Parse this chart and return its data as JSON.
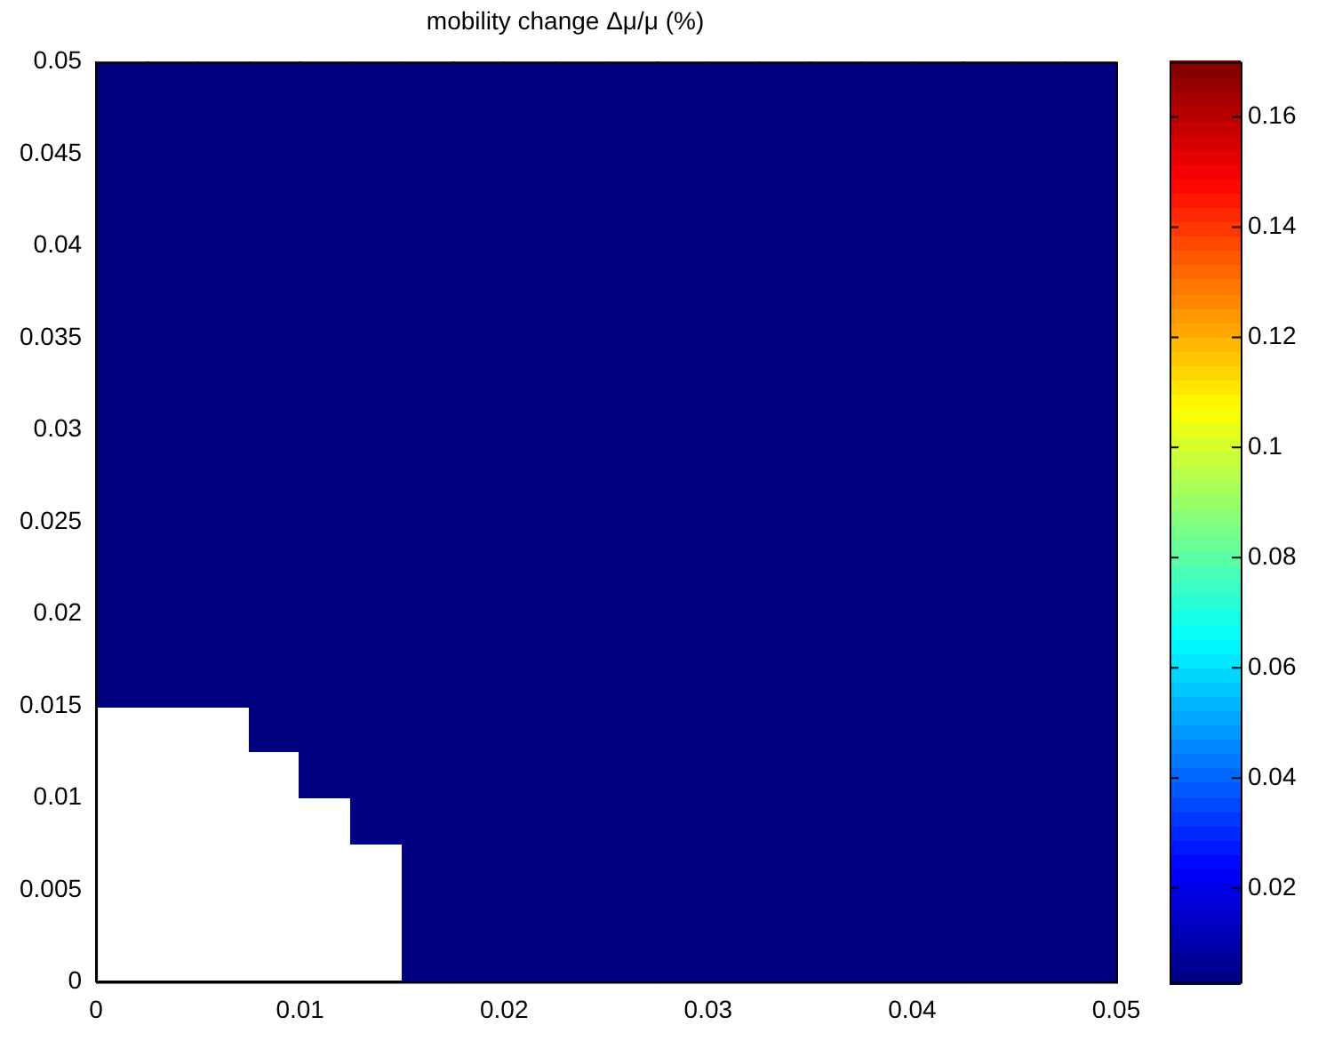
{
  "chart_data": {
    "type": "heatmap",
    "title": "mobility change Δμ/μ (%)",
    "xlim": [
      0,
      0.05
    ],
    "xticks": [
      0,
      0.01,
      0.02,
      0.03,
      0.04,
      0.05
    ],
    "ylim": [
      0,
      0.05
    ],
    "yticks": [
      0,
      0.005,
      0.01,
      0.015,
      0.02,
      0.025,
      0.03,
      0.035,
      0.04,
      0.045,
      0.05
    ],
    "clim": [
      0.003,
      0.17
    ],
    "cticks": [
      0.02,
      0.04,
      0.06,
      0.08,
      0.1,
      0.12,
      0.14,
      0.16
    ],
    "cells": [
      [
        0.003,
        0.003,
        0.003,
        0.003,
        0.003,
        0.003,
        0.003,
        0.003,
        0.003,
        0.003,
        0.003,
        0.003,
        0.003,
        0.003,
        0.003,
        0.003,
        0.003,
        0.003,
        0.003,
        0.003
      ],
      [
        0.003,
        0.003,
        0.003,
        0.003,
        0.003,
        0.003,
        0.003,
        0.003,
        0.003,
        0.003,
        0.003,
        0.003,
        0.003,
        0.003,
        0.003,
        0.003,
        0.003,
        0.003,
        0.003,
        0.003
      ],
      [
        0.003,
        0.003,
        0.003,
        0.003,
        0.003,
        0.003,
        0.003,
        0.003,
        0.003,
        0.003,
        0.003,
        0.003,
        0.003,
        0.003,
        0.003,
        0.003,
        0.003,
        0.003,
        0.003,
        0.003
      ],
      [
        0.003,
        0.003,
        0.003,
        0.003,
        0.003,
        0.003,
        0.003,
        0.003,
        0.003,
        0.003,
        0.003,
        0.003,
        0.003,
        0.003,
        0.003,
        0.003,
        0.003,
        0.003,
        0.003,
        0.003
      ],
      [
        0.003,
        0.003,
        0.003,
        0.003,
        0.003,
        0.003,
        0.003,
        0.003,
        0.003,
        0.003,
        0.003,
        0.003,
        0.003,
        0.003,
        0.003,
        0.003,
        0.003,
        0.003,
        0.003,
        0.003
      ],
      [
        0.003,
        0.003,
        0.003,
        0.003,
        0.003,
        0.003,
        0.003,
        0.003,
        0.003,
        0.003,
        0.003,
        0.003,
        0.003,
        0.003,
        0.003,
        0.003,
        0.003,
        0.003,
        0.003,
        0.003
      ],
      [
        0.003,
        0.003,
        0.003,
        0.003,
        0.003,
        0.003,
        0.003,
        0.003,
        0.003,
        0.003,
        0.003,
        0.003,
        0.003,
        0.003,
        0.003,
        0.003,
        0.003,
        0.003,
        0.003,
        0.003
      ],
      [
        0.003,
        0.003,
        0.003,
        0.003,
        0.003,
        0.003,
        0.003,
        0.003,
        0.003,
        0.003,
        0.003,
        0.003,
        0.003,
        0.003,
        0.003,
        0.003,
        0.003,
        0.003,
        0.003,
        0.003
      ],
      [
        0.003,
        0.003,
        0.003,
        0.003,
        0.003,
        0.003,
        0.003,
        0.003,
        0.003,
        0.003,
        0.003,
        0.003,
        0.003,
        0.003,
        0.003,
        0.003,
        0.003,
        0.003,
        0.003,
        0.003
      ],
      [
        0.003,
        0.003,
        0.003,
        0.003,
        0.003,
        0.003,
        0.003,
        0.003,
        0.003,
        0.003,
        0.003,
        0.003,
        0.003,
        0.003,
        0.003,
        0.003,
        0.003,
        0.003,
        0.003,
        0.003
      ],
      [
        0.003,
        0.003,
        0.003,
        0.003,
        0.003,
        0.003,
        0.003,
        0.003,
        0.003,
        0.003,
        0.003,
        0.003,
        0.003,
        0.003,
        0.003,
        0.003,
        0.003,
        0.003,
        0.003,
        0.003
      ],
      [
        0.003,
        0.003,
        0.003,
        0.003,
        0.003,
        0.003,
        0.003,
        0.003,
        0.003,
        0.003,
        0.003,
        0.003,
        0.003,
        0.003,
        0.003,
        0.003,
        0.003,
        0.003,
        0.003,
        0.003
      ],
      [
        0.003,
        0.003,
        0.003,
        0.003,
        0.003,
        0.003,
        0.003,
        0.003,
        0.003,
        0.003,
        0.003,
        0.003,
        0.003,
        0.003,
        0.003,
        0.003,
        0.003,
        0.003,
        0.003,
        0.003
      ],
      [
        0.003,
        0.003,
        0.003,
        0.003,
        0.003,
        0.003,
        0.003,
        0.003,
        0.003,
        0.003,
        0.003,
        0.003,
        0.003,
        0.003,
        0.003,
        0.003,
        0.003,
        0.003,
        0.003,
        0.003
      ],
      [
        null,
        null,
        null,
        0.003,
        0.003,
        0.003,
        0.003,
        0.003,
        0.003,
        0.003,
        0.003,
        0.003,
        0.003,
        0.003,
        0.003,
        0.003,
        0.003,
        0.003,
        0.003,
        0.003
      ],
      [
        null,
        null,
        null,
        null,
        0.003,
        0.003,
        0.003,
        0.003,
        0.003,
        0.003,
        0.003,
        0.003,
        0.003,
        0.003,
        0.003,
        0.003,
        0.003,
        0.003,
        0.003,
        0.003
      ],
      [
        null,
        null,
        null,
        null,
        null,
        0.003,
        0.003,
        0.003,
        0.003,
        0.003,
        0.003,
        0.003,
        0.003,
        0.003,
        0.003,
        0.003,
        0.003,
        0.003,
        0.003,
        0.003
      ],
      [
        null,
        null,
        null,
        null,
        null,
        null,
        0.003,
        0.003,
        0.003,
        0.003,
        0.003,
        0.003,
        0.003,
        0.003,
        0.003,
        0.003,
        0.003,
        0.003,
        0.003,
        0.003
      ],
      [
        null,
        null,
        null,
        null,
        null,
        null,
        0.003,
        0.003,
        0.003,
        0.003,
        0.003,
        0.003,
        0.003,
        0.003,
        0.003,
        0.003,
        0.003,
        0.003,
        0.003,
        0.003
      ],
      [
        null,
        null,
        null,
        null,
        null,
        null,
        0.003,
        0.003,
        0.003,
        0.003,
        0.003,
        0.003,
        0.003,
        0.003,
        0.003,
        0.003,
        0.003,
        0.003,
        0.003,
        0.003
      ]
    ]
  }
}
